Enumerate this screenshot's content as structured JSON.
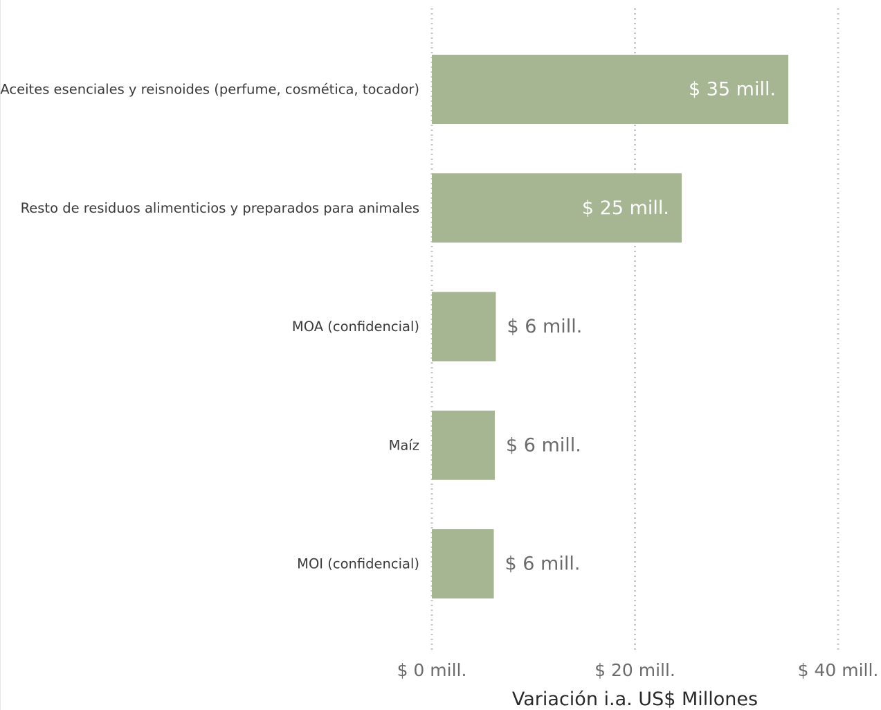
{
  "chart_data": {
    "type": "bar",
    "orientation": "horizontal",
    "categories": [
      "Aceites esenciales y reisnoides (perfume, cosmética, tocador)",
      "Resto de residuos alimenticios y preparados para animales",
      "MOA (confidencial)",
      "Maíz",
      "MOI (confidencial)"
    ],
    "values": [
      35.1,
      24.6,
      6.3,
      6.2,
      6.1
    ],
    "data_labels": [
      "$ 35 mill.",
      "$ 25 mill.",
      "$ 6 mill.",
      "$ 6 mill.",
      "$ 6 mill."
    ],
    "xlim": [
      0,
      40
    ],
    "x_ticks": [
      0,
      20,
      40
    ],
    "x_tick_labels": [
      "$ 0 mill.",
      "$ 20 mill.",
      "$ 40 mill."
    ],
    "xlabel": "Variación i.a. US$ Millones",
    "ylabel": "",
    "title": "",
    "grid": "vertical dotted",
    "legend": "none",
    "colors": {
      "bar": "#a6b592",
      "grid": "#c8c8c8",
      "category_label": "#3a3a3a",
      "data_label_outside": "#6b6b6b",
      "data_label_inside": "#ffffff",
      "tick_label": "#6b6b6b",
      "axis_title": "#2a2a2a"
    }
  }
}
